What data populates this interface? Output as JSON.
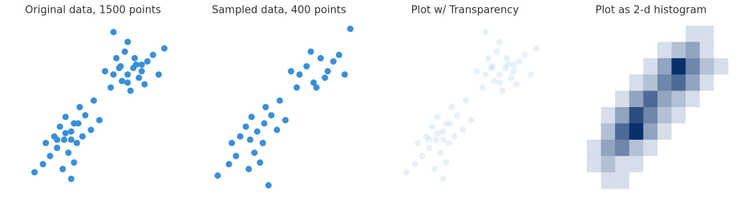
{
  "chart_data": [
    {
      "type": "scatter",
      "title": "Original data, 1500 points",
      "color": "#3a8fd6",
      "alpha": 1,
      "xlim": [
        0,
        10
      ],
      "ylim": [
        0,
        10
      ],
      "x": [
        1,
        1.5,
        2,
        2.5,
        3,
        3.5,
        2.2,
        2.8,
        3.4,
        1.8,
        4,
        3.6,
        4.4,
        2.6,
        3.2,
        1.2,
        4.6,
        3.8,
        2.4,
        5,
        6,
        6.5,
        7,
        7.5,
        8,
        6.8,
        7.2,
        8.4,
        5.8,
        6.2,
        7.8,
        8.8,
        7.4,
        6.6,
        5.4,
        8.2,
        7,
        9.2,
        0.4,
        3,
        6,
        9.6,
        2,
        3,
        2.6,
        3.2,
        7,
        7.6,
        6.4,
        8
      ],
      "y": [
        1.5,
        2,
        2.5,
        3,
        3.5,
        4,
        3.8,
        2.2,
        2.8,
        3.2,
        4.5,
        5,
        3.6,
        4.4,
        1.6,
        2.8,
        5.4,
        3.2,
        1.2,
        4.2,
        7,
        7.5,
        6.5,
        8,
        7.2,
        8.4,
        6,
        7.8,
        6.2,
        8,
        6.8,
        8.2,
        7.4,
        6.6,
        7.2,
        6.4,
        9,
        7,
        1,
        0.6,
        9.6,
        8.6,
        3,
        3,
        3.4,
        4,
        7,
        7.6,
        7.4,
        7.6
      ]
    },
    {
      "type": "scatter",
      "title": "Sampled data, 400 points",
      "color": "#3a8fd6",
      "alpha": 1,
      "xlim": [
        0,
        10
      ],
      "ylim": [
        0,
        10
      ],
      "x": [
        1,
        1.5,
        2.5,
        3,
        3.5,
        2.2,
        2.8,
        3.4,
        1.8,
        4,
        3.6,
        4.4,
        2.6,
        3.2,
        1.2,
        4.6,
        2.4,
        5,
        6,
        6.5,
        7,
        7.5,
        8,
        6.8,
        7.2,
        8.4,
        5.8,
        7.8,
        8.8,
        5.4,
        9.2,
        0.2,
        3.8,
        9.6
      ],
      "y": [
        1.5,
        2,
        3,
        3.5,
        4,
        3.8,
        2.2,
        2.8,
        3.2,
        4.5,
        5,
        3.6,
        4.4,
        1.6,
        2.8,
        5.4,
        1.2,
        4.2,
        7,
        7.5,
        6.5,
        8,
        7.2,
        8.4,
        6.2,
        7.8,
        6.2,
        6.8,
        8.2,
        7.2,
        7,
        0.8,
        0.2,
        9.8
      ]
    },
    {
      "type": "scatter",
      "title": "Plot w/ Transparency",
      "color": "#3a8fd6",
      "alpha": 0.12,
      "xlim": [
        0,
        10
      ],
      "ylim": [
        0,
        10
      ],
      "x": [
        1,
        1.5,
        2,
        2.5,
        3,
        3.5,
        2.2,
        2.8,
        3.4,
        1.8,
        4,
        3.6,
        4.4,
        2.6,
        3.2,
        1.2,
        4.6,
        3.8,
        2.4,
        5,
        6,
        6.5,
        7,
        7.5,
        8,
        6.8,
        7.2,
        8.4,
        5.8,
        6.2,
        7.8,
        8.8,
        7.4,
        6.6,
        5.4,
        8.2,
        7,
        9.2,
        0.4,
        3,
        6,
        9.6,
        2,
        3,
        2.6,
        3.2,
        7,
        7.6,
        6.4,
        8
      ],
      "y": [
        1.5,
        2,
        2.5,
        3,
        3.5,
        4,
        3.8,
        2.2,
        2.8,
        3.2,
        4.5,
        5,
        3.6,
        4.4,
        1.6,
        2.8,
        5.4,
        3.2,
        1.2,
        4.2,
        7,
        7.5,
        6.5,
        8,
        7.2,
        8.4,
        6,
        7.8,
        6.2,
        8,
        6.8,
        8.2,
        7.4,
        6.6,
        7.2,
        6.4,
        9,
        7,
        1,
        0.6,
        9.6,
        8.6,
        3,
        3,
        3.4,
        4,
        7,
        7.6,
        7.4,
        7.6
      ]
    },
    {
      "type": "heatmap",
      "title": "Plot as 2-d histogram",
      "cmap": "Blues",
      "z": [
        [
          0,
          0,
          0,
          0,
          0,
          0,
          0,
          1,
          1,
          0
        ],
        [
          0,
          0,
          0,
          0,
          0,
          1,
          2,
          3,
          1,
          0
        ],
        [
          0,
          0,
          0,
          0,
          1,
          3,
          7,
          4,
          2,
          1
        ],
        [
          0,
          0,
          0,
          1,
          2,
          4,
          5,
          3,
          1,
          0
        ],
        [
          0,
          0,
          1,
          3,
          5,
          3,
          2,
          1,
          0,
          0
        ],
        [
          0,
          1,
          3,
          6,
          4,
          2,
          1,
          0,
          0,
          0
        ],
        [
          0,
          2,
          5,
          7,
          3,
          1,
          0,
          0,
          0,
          0
        ],
        [
          1,
          3,
          4,
          2,
          1,
          0,
          0,
          0,
          0,
          0
        ],
        [
          1,
          2,
          1,
          1,
          0,
          0,
          0,
          0,
          0,
          0
        ],
        [
          0,
          1,
          1,
          0,
          0,
          0,
          0,
          0,
          0,
          0
        ]
      ]
    }
  ]
}
